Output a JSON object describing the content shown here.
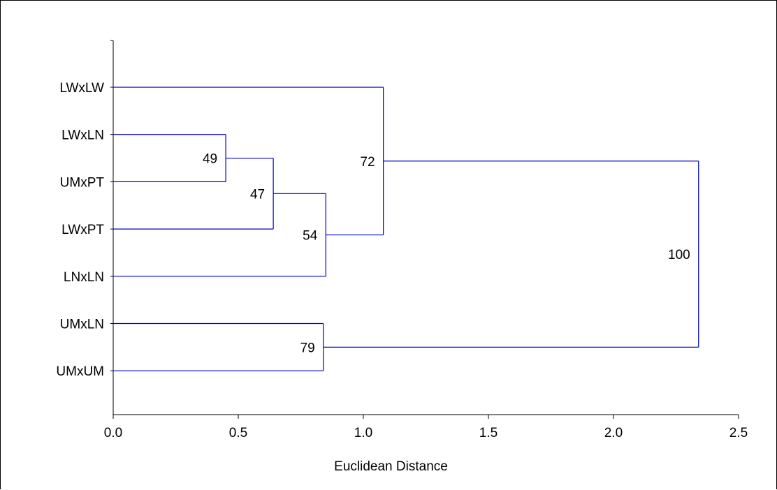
{
  "chart_data": {
    "type": "dendrogram",
    "orientation": "horizontal",
    "xlabel": "Euclidean Distance",
    "xlim": [
      0.0,
      2.5
    ],
    "xticks": [
      "0.0",
      "0.5",
      "1.0",
      "1.5",
      "2.0",
      "2.5"
    ],
    "leaves": [
      "LWxLW",
      "LWxLN",
      "UMxPT",
      "LWxPT",
      "LNxLN",
      "UMxLN",
      "UMxUM"
    ],
    "merges": [
      {
        "left": "LWxLN",
        "right": "UMxPT",
        "height": 0.45,
        "support": "49"
      },
      {
        "left": "merge:0",
        "right": "LWxPT",
        "height": 0.64,
        "support": "47"
      },
      {
        "left": "merge:1",
        "right": "LNxLN",
        "height": 0.85,
        "support": "54"
      },
      {
        "left": "LWxLW",
        "right": "merge:2",
        "height": 1.08,
        "support": "72"
      },
      {
        "left": "UMxLN",
        "right": "UMxUM",
        "height": 0.84,
        "support": "79"
      },
      {
        "left": "merge:3",
        "right": "merge:4",
        "height": 2.34,
        "support": "100"
      }
    ],
    "line_color": "#0000cc",
    "grid": false
  }
}
